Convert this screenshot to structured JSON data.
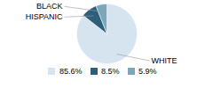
{
  "chart_data": {
    "type": "pie",
    "categories": [
      "WHITE",
      "HISPANIC",
      "BLACK"
    ],
    "values": [
      85.6,
      8.5,
      5.9
    ],
    "value_labels": [
      "85.6%",
      "8.5%",
      "5.9%"
    ],
    "colors": [
      "#d6e4f0",
      "#2e5f7a",
      "#7ba7bc"
    ],
    "legend": "bottom"
  }
}
